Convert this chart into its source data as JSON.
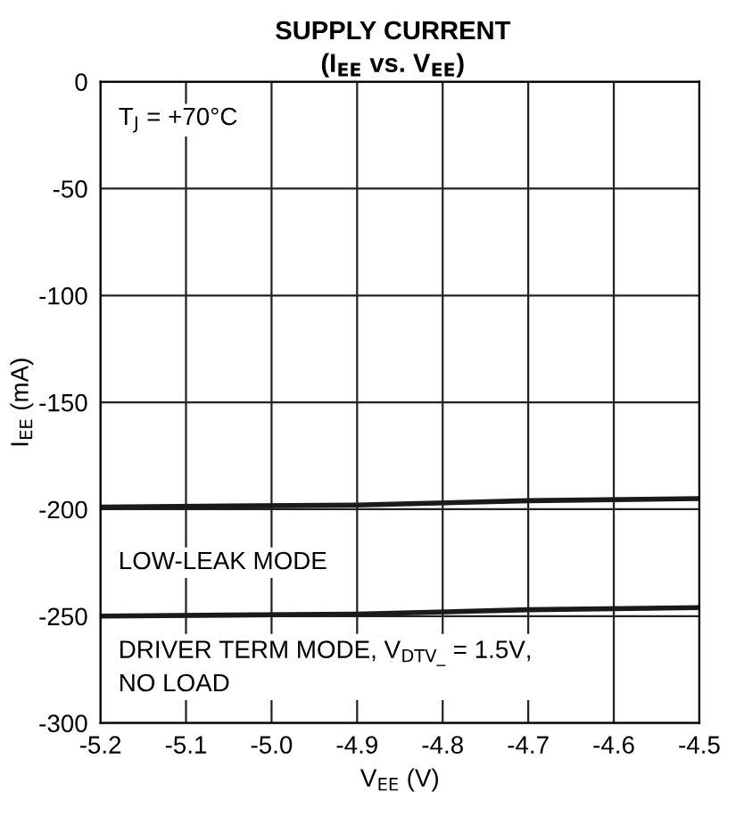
{
  "chart_data": {
    "type": "line",
    "title": "SUPPLY CURRENT",
    "subtitle": "(I$_{EE}$ vs. V$_{EE}$)",
    "xlabel": "V$_{EE}$ (V)",
    "ylabel": "I$_{EE}$ (mA)",
    "x": [
      -5.2,
      -4.9,
      -4.7,
      -4.5
    ],
    "series": [
      {
        "color": "#1a1a1a",
        "values": [
          -199,
          -198,
          -196,
          -195
        ]
      },
      {
        "color": "#1a1a1a",
        "values": [
          -250,
          -249,
          -247,
          -246
        ]
      }
    ],
    "xlim": [
      -5.2,
      -4.5
    ],
    "xticks": [
      -5.2,
      -5.1,
      {
        "value": -5.0,
        "label": "-5.0"
      },
      -4.9,
      -4.8,
      -4.7,
      -4.6,
      -4.5
    ],
    "ylim": [
      -300,
      0
    ],
    "yticks": [
      -300,
      -250,
      -200,
      -150,
      -100,
      -50,
      0
    ],
    "grid": true,
    "line_style": "solid",
    "marker": "none",
    "annotations": [
      "T$_{J}$ = +70°C",
      "LOW-LEAK MODE",
      "DRIVER TERM MODE, V$_{DTV_}$ = 1.5V,\nNO LOAD"
    ]
  }
}
